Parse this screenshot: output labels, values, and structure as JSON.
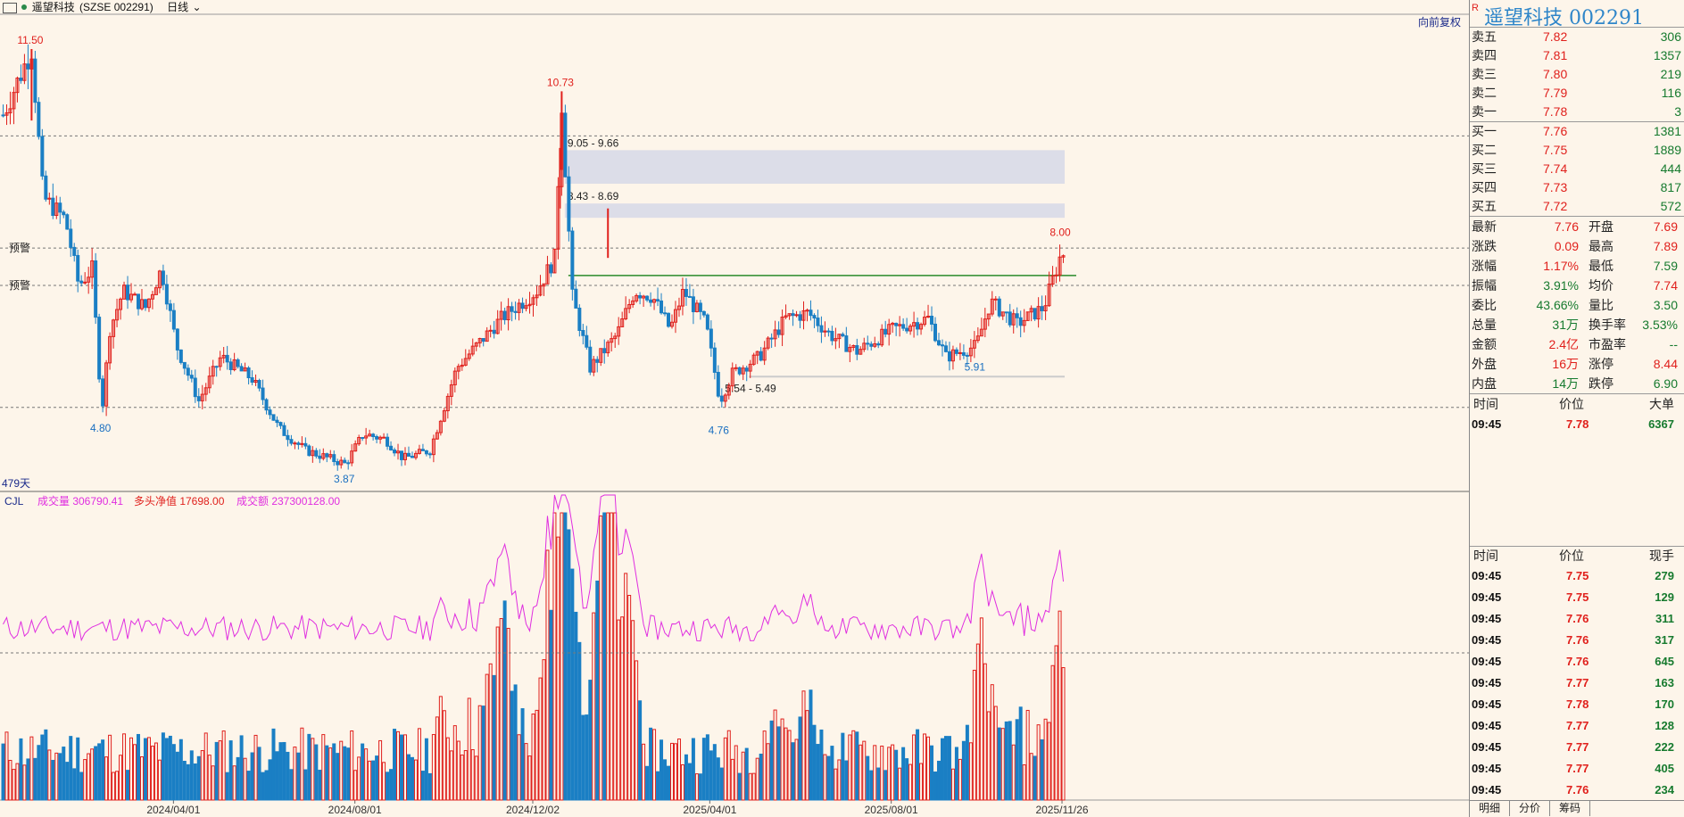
{
  "header": {
    "window_icon": "window-icon",
    "stock_name": "遥望科技",
    "stock_code": "(SZSE 002291)",
    "period": "日线",
    "rights_btn": "向前复权",
    "days_label": "479天"
  },
  "volume_header": {
    "ind": "CJL",
    "vol": "成交量 306790.41",
    "net": "多头净值 17698.00",
    "amt": "成交额 237300128.00"
  },
  "warn_label_1": "预警",
  "warn_label_2": "预警",
  "chart_data": [
    {
      "type": "candlestick",
      "x_axis_labels": [
        "2024/04/01",
        "2024/08/01",
        "2024/12/02",
        "2025/04/01",
        "2025/08/01",
        "2025/11/26"
      ],
      "ylim": [
        3.5,
        12.1
      ],
      "annotations": [
        {
          "text": "11.50",
          "value": 11.5,
          "day": 32,
          "color": "red"
        },
        {
          "text": "4.80",
          "value": 4.8,
          "day": 111,
          "color": "blue"
        },
        {
          "text": "3.87",
          "value": 3.87,
          "day": 385,
          "color": "blue"
        },
        {
          "text": "10.73",
          "value": 10.73,
          "day": 628,
          "color": "red"
        },
        {
          "text": "4.76",
          "value": 4.76,
          "day": 806,
          "color": "blue"
        },
        {
          "text": "5.91",
          "value": 5.91,
          "day": 1094,
          "color": "blue"
        },
        {
          "text": "8.00",
          "value": 8.0,
          "day": 1190,
          "color": "red"
        }
      ],
      "zones": [
        {
          "label": "9.05 - 9.66",
          "low": 9.05,
          "high": 9.66
        },
        {
          "label": "8.43 - 8.69",
          "low": 8.43,
          "high": 8.69
        },
        {
          "label": "5.54 - 5.49",
          "low": 5.49,
          "high": 5.54
        }
      ],
      "hlines": [
        7.88,
        7.2
      ],
      "dotted_lines": [
        9.92,
        7.88,
        7.2,
        4.98
      ],
      "resistance": 7.38,
      "keypoints": [
        [
          0,
          10.3
        ],
        [
          32,
          11.5
        ],
        [
          45,
          8.8
        ],
        [
          70,
          8.4
        ],
        [
          85,
          7.2
        ],
        [
          100,
          7.5
        ],
        [
          111,
          4.9
        ],
        [
          120,
          6.4
        ],
        [
          135,
          7.1
        ],
        [
          160,
          6.8
        ],
        [
          178,
          7.5
        ],
        [
          195,
          6.1
        ],
        [
          220,
          5.1
        ],
        [
          245,
          5.9
        ],
        [
          280,
          5.5
        ],
        [
          310,
          4.6
        ],
        [
          340,
          4.2
        ],
        [
          385,
          3.95
        ],
        [
          405,
          4.5
        ],
        [
          430,
          4.4
        ],
        [
          450,
          4.05
        ],
        [
          480,
          4.2
        ],
        [
          510,
          5.7
        ],
        [
          560,
          6.6
        ],
        [
          600,
          7.1
        ],
        [
          620,
          7.7
        ],
        [
          628,
          10.5
        ],
        [
          640,
          7.0
        ],
        [
          660,
          5.7
        ],
        [
          670,
          5.9
        ],
        [
          690,
          6.3
        ],
        [
          710,
          7.1
        ],
        [
          730,
          7.0
        ],
        [
          750,
          6.4
        ],
        [
          765,
          7.1
        ],
        [
          790,
          6.5
        ],
        [
          806,
          5.1
        ],
        [
          820,
          5.6
        ],
        [
          850,
          5.9
        ],
        [
          880,
          6.6
        ],
        [
          905,
          6.7
        ],
        [
          930,
          6.3
        ],
        [
          960,
          6.0
        ],
        [
          1000,
          6.4
        ],
        [
          1040,
          6.6
        ],
        [
          1060,
          5.9
        ],
        [
          1094,
          6.1
        ],
        [
          1110,
          6.9
        ],
        [
          1140,
          6.5
        ],
        [
          1170,
          6.8
        ],
        [
          1190,
          7.8
        ],
        [
          1195,
          7.76
        ]
      ]
    },
    {
      "type": "bar",
      "name": "成交量",
      "line_name": "成交额",
      "ylim": [
        0,
        1
      ],
      "spikes": [
        [
          560,
          0.56
        ],
        [
          626,
          1.0
        ],
        [
          632,
          0.72
        ],
        [
          680,
          1.0
        ],
        [
          700,
          0.55
        ],
        [
          870,
          0.42
        ],
        [
          905,
          0.45
        ],
        [
          1100,
          0.5
        ],
        [
          1190,
          0.55
        ]
      ],
      "base_level": 0.18
    }
  ],
  "order_book": {
    "title_badge": "R",
    "title": "遥望科技  002291",
    "asks": [
      {
        "label": "卖五",
        "price": "7.82",
        "vol": "306"
      },
      {
        "label": "卖四",
        "price": "7.81",
        "vol": "1357"
      },
      {
        "label": "卖三",
        "price": "7.80",
        "vol": "219"
      },
      {
        "label": "卖二",
        "price": "7.79",
        "vol": "116"
      },
      {
        "label": "卖一",
        "price": "7.78",
        "vol": "3"
      }
    ],
    "bids": [
      {
        "label": "买一",
        "price": "7.76",
        "vol": "1381"
      },
      {
        "label": "买二",
        "price": "7.75",
        "vol": "1889"
      },
      {
        "label": "买三",
        "price": "7.74",
        "vol": "444"
      },
      {
        "label": "买四",
        "price": "7.73",
        "vol": "817"
      },
      {
        "label": "买五",
        "price": "7.72",
        "vol": "572"
      }
    ]
  },
  "stats": [
    {
      "l1": "最新",
      "v1": "7.76",
      "c1": "red",
      "l2": "开盘",
      "v2": "7.69",
      "c2": "red"
    },
    {
      "l1": "涨跌",
      "v1": "0.09",
      "c1": "red",
      "l2": "最高",
      "v2": "7.89",
      "c2": "red"
    },
    {
      "l1": "涨幅",
      "v1": "1.17%",
      "c1": "red",
      "l2": "最低",
      "v2": "7.59",
      "c2": "green"
    },
    {
      "l1": "振幅",
      "v1": "3.91%",
      "c1": "green",
      "l2": "均价",
      "v2": "7.74",
      "c2": "red"
    },
    {
      "l1": "委比",
      "v1": "43.66%",
      "c1": "green",
      "l2": "量比",
      "v2": "3.50",
      "c2": "green"
    },
    {
      "l1": "总量",
      "v1": "31万",
      "c1": "green",
      "l2": "换手率",
      "v2": "3.53%",
      "c2": "green"
    },
    {
      "l1": "金额",
      "v1": "2.4亿",
      "c1": "red",
      "l2": "市盈率",
      "v2": "--",
      "c2": "green"
    },
    {
      "l1": "外盘",
      "v1": "16万",
      "c1": "red",
      "l2": "涨停",
      "v2": "8.44",
      "c2": "red"
    },
    {
      "l1": "内盘",
      "v1": "14万",
      "c1": "green",
      "l2": "跌停",
      "v2": "6.90",
      "c2": "green"
    }
  ],
  "big_orders": {
    "headers": [
      "时间",
      "价位",
      "大单"
    ],
    "rows": [
      {
        "t": "09:45",
        "p": "7.78",
        "v": "6367"
      }
    ]
  },
  "ticks": {
    "headers": [
      "时间",
      "价位",
      "现手"
    ],
    "rows": [
      {
        "t": "09:45",
        "p": "7.75",
        "v": "279"
      },
      {
        "t": "09:45",
        "p": "7.75",
        "v": "129"
      },
      {
        "t": "09:45",
        "p": "7.76",
        "v": "311"
      },
      {
        "t": "09:45",
        "p": "7.76",
        "v": "317"
      },
      {
        "t": "09:45",
        "p": "7.76",
        "v": "645"
      },
      {
        "t": "09:45",
        "p": "7.77",
        "v": "163"
      },
      {
        "t": "09:45",
        "p": "7.78",
        "v": "170"
      },
      {
        "t": "09:45",
        "p": "7.77",
        "v": "128"
      },
      {
        "t": "09:45",
        "p": "7.77",
        "v": "222"
      },
      {
        "t": "09:45",
        "p": "7.77",
        "v": "405"
      },
      {
        "t": "09:45",
        "p": "7.76",
        "v": "234"
      }
    ]
  },
  "tabs": [
    "明细",
    "分价",
    "筹码"
  ],
  "colors": {
    "up": "#e0201c",
    "down": "#1a7fc4",
    "bg": "#fdf5ea",
    "line": "#e02ee0",
    "resist": "#2a8a2a"
  }
}
